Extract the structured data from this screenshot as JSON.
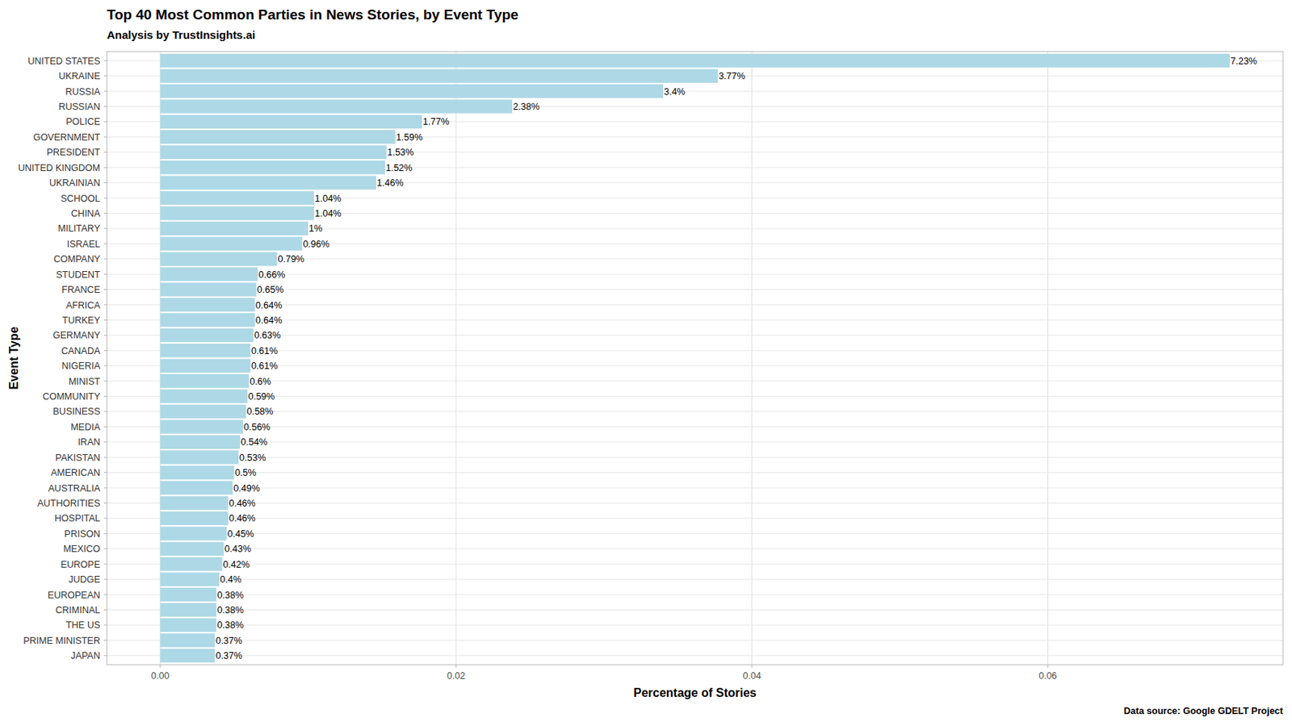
{
  "chart_data": {
    "type": "bar",
    "orientation": "horizontal",
    "title": "Top 40 Most Common Parties in News Stories, by Event Type",
    "subtitle": "Analysis by TrustInsights.ai",
    "x_label": "Percentage of Stories",
    "y_label": "Event Type",
    "caption": "Data source: Google GDELT Project",
    "categories": [
      "UNITED STATES",
      "UKRAINE",
      "RUSSIA",
      "RUSSIAN",
      "POLICE",
      "GOVERNMENT",
      "PRESIDENT",
      "UNITED KINGDOM",
      "UKRAINIAN",
      "SCHOOL",
      "CHINA",
      "MILITARY",
      "ISRAEL",
      "COMPANY",
      "STUDENT",
      "FRANCE",
      "AFRICA",
      "TURKEY",
      "GERMANY",
      "CANADA",
      "NIGERIA",
      "MINIST",
      "COMMUNITY",
      "BUSINESS",
      "MEDIA",
      "IRAN",
      "PAKISTAN",
      "AMERICAN",
      "AUSTRALIA",
      "AUTHORITIES",
      "HOSPITAL",
      "PRISON",
      "MEXICO",
      "EUROPE",
      "JUDGE",
      "EUROPEAN",
      "CRIMINAL",
      "THE US",
      "PRIME MINISTER",
      "JAPAN"
    ],
    "values": [
      0.0723,
      0.0377,
      0.034,
      0.0238,
      0.0177,
      0.0159,
      0.0153,
      0.0152,
      0.0146,
      0.0104,
      0.0104,
      0.01,
      0.0096,
      0.0079,
      0.0066,
      0.0065,
      0.0064,
      0.0064,
      0.0063,
      0.0061,
      0.0061,
      0.006,
      0.0059,
      0.0058,
      0.0056,
      0.0054,
      0.0053,
      0.005,
      0.0049,
      0.0046,
      0.0046,
      0.0045,
      0.0043,
      0.0042,
      0.004,
      0.0038,
      0.0038,
      0.0038,
      0.0037,
      0.0037
    ],
    "value_labels": [
      "7.23%",
      "3.77%",
      "3.4%",
      "2.38%",
      "1.77%",
      "1.59%",
      "1.53%",
      "1.52%",
      "1.46%",
      "1.04%",
      "1.04%",
      "1%",
      "0.96%",
      "0.79%",
      "0.66%",
      "0.65%",
      "0.64%",
      "0.64%",
      "0.63%",
      "0.61%",
      "0.61%",
      "0.6%",
      "0.59%",
      "0.58%",
      "0.56%",
      "0.54%",
      "0.53%",
      "0.5%",
      "0.49%",
      "0.46%",
      "0.46%",
      "0.45%",
      "0.43%",
      "0.42%",
      "0.4%",
      "0.38%",
      "0.38%",
      "0.38%",
      "0.37%",
      "0.37%"
    ],
    "color": "#add8e6",
    "xlim": [
      -0.0036,
      0.0759
    ],
    "xticks": [
      {
        "value": 0,
        "label": "0.00"
      },
      0.02,
      0.04,
      0.06
    ],
    "grid": true,
    "data_labels": true
  }
}
